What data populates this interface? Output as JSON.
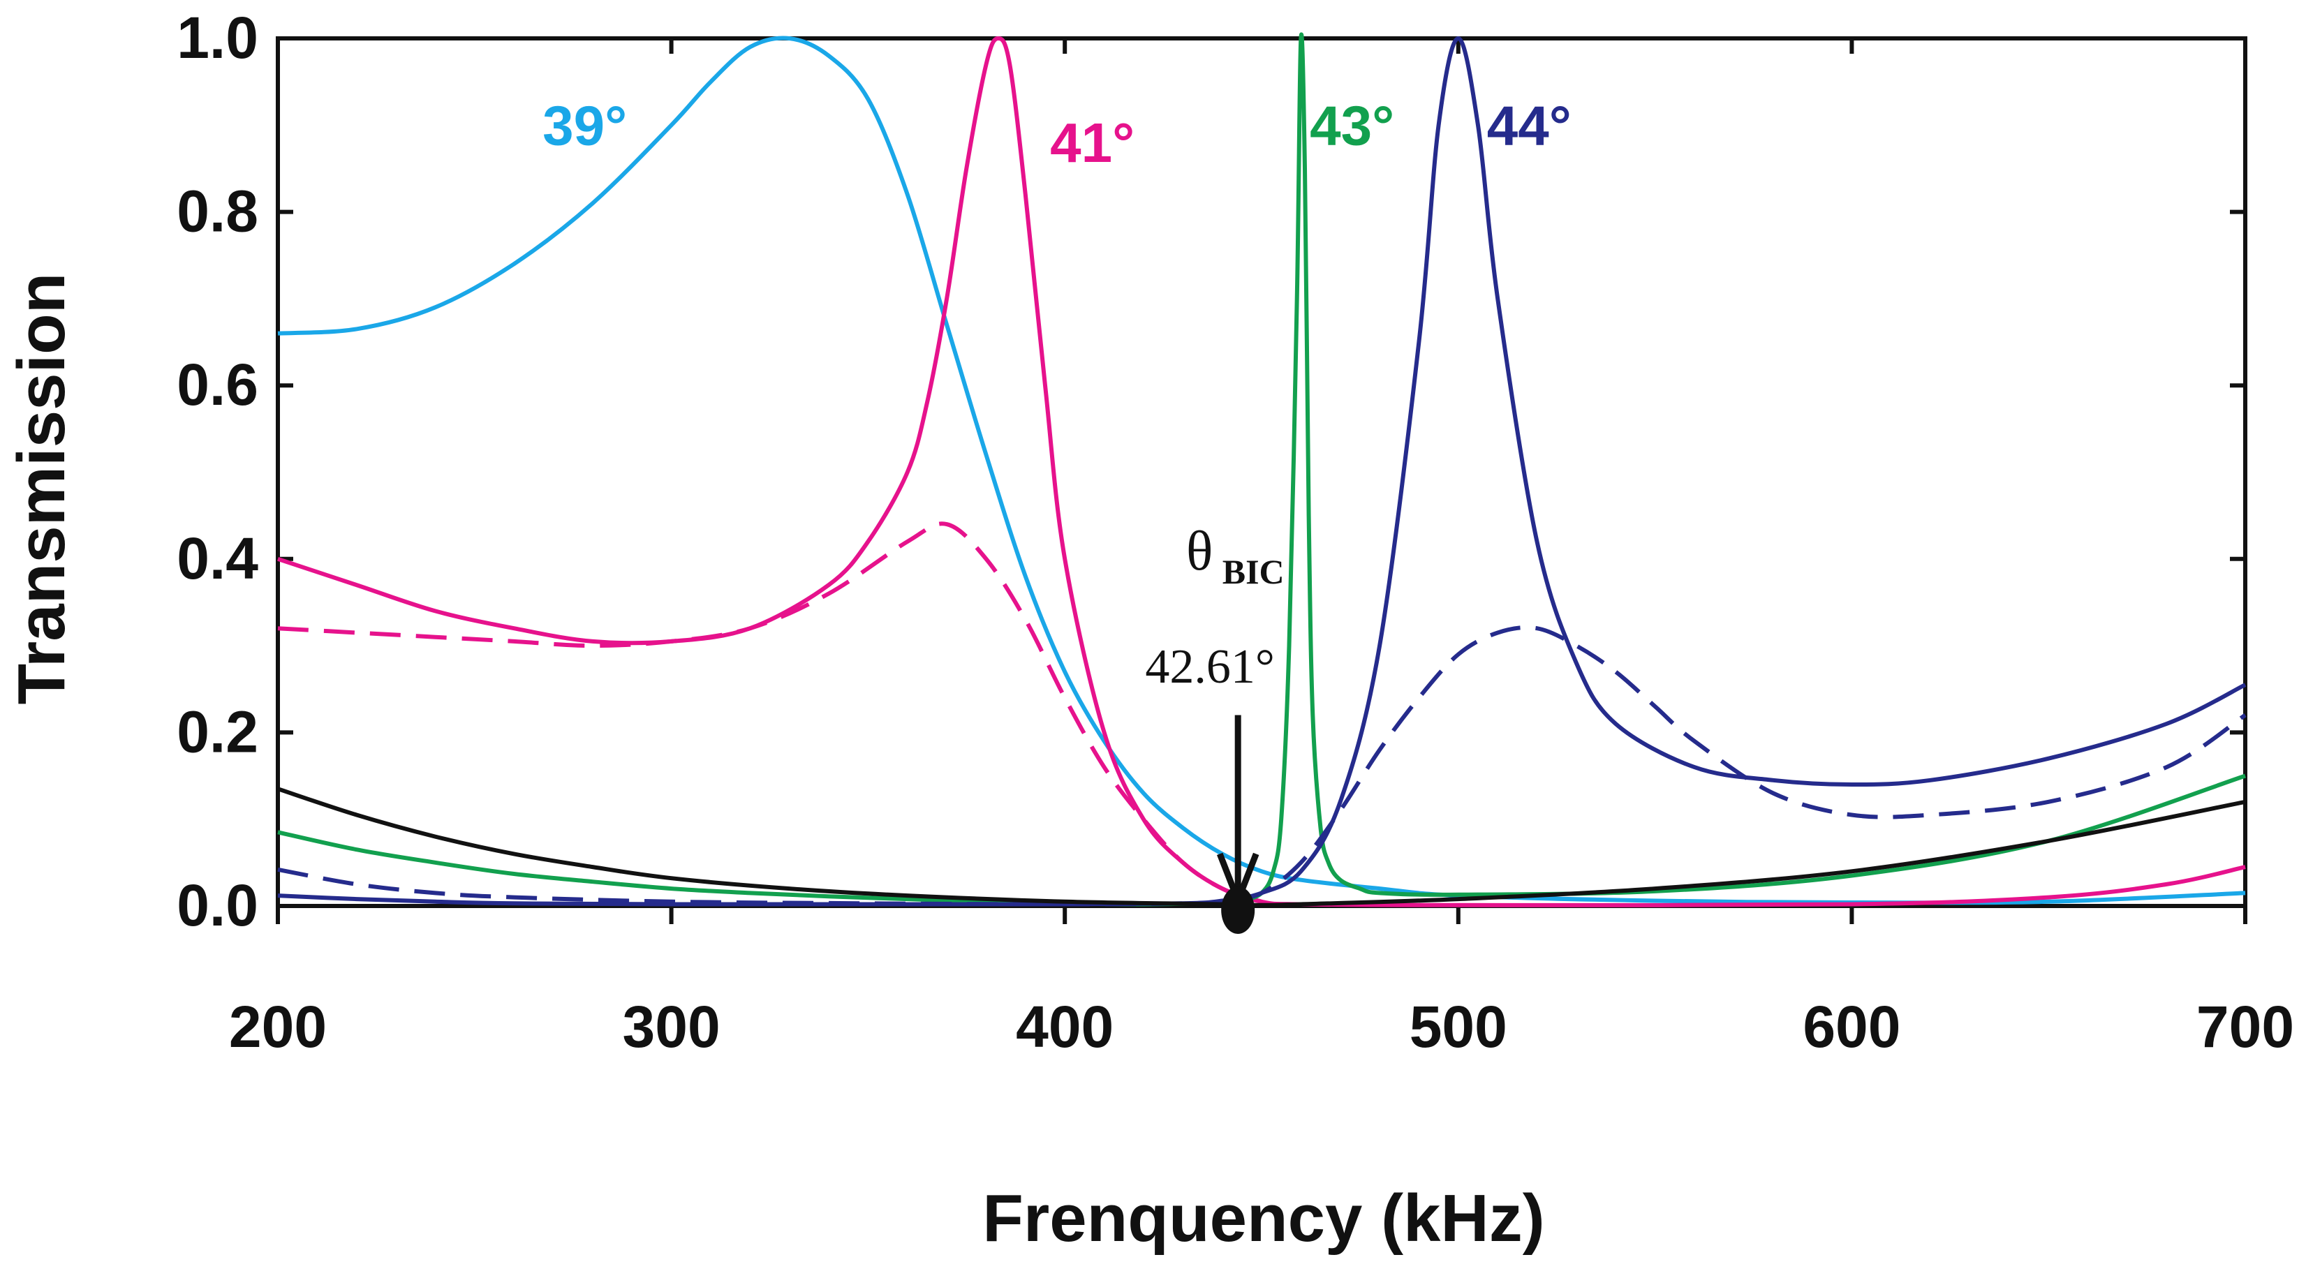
{
  "chart_data": {
    "type": "line",
    "title": "",
    "xlabel": "Frenquency (kHz)",
    "ylabel": "Transmission",
    "xlim": [
      200,
      700
    ],
    "ylim": [
      0.0,
      1.0
    ],
    "x_ticks": [
      "200",
      "300",
      "400",
      "500",
      "600",
      "700"
    ],
    "y_ticks": [
      "0.0",
      "0.2",
      "0.4",
      "0.6",
      "0.8",
      "1.0"
    ],
    "grid": false,
    "colors": {
      "39": "#1aa7e8",
      "41": "#e6128c",
      "43": "#12a04e",
      "44": "#252b8c",
      "black": "#111111"
    },
    "series": [
      {
        "name": "39°",
        "color": "#1aa7e8",
        "style": "solid",
        "x": [
          200,
          220,
          240,
          260,
          280,
          300,
          310,
          320,
          330,
          340,
          350,
          360,
          370,
          380,
          390,
          400,
          410,
          420,
          430,
          440,
          450,
          460,
          480,
          500,
          550,
          600,
          650,
          700
        ],
        "y": [
          0.66,
          0.665,
          0.69,
          0.74,
          0.81,
          0.9,
          0.95,
          0.99,
          1.0,
          0.98,
          0.93,
          0.82,
          0.67,
          0.52,
          0.38,
          0.27,
          0.19,
          0.13,
          0.09,
          0.06,
          0.04,
          0.03,
          0.02,
          0.012,
          0.006,
          0.004,
          0.005,
          0.015
        ]
      },
      {
        "name": "41°",
        "color": "#e6128c",
        "style": "solid",
        "x": [
          200,
          220,
          240,
          260,
          280,
          300,
          320,
          340,
          350,
          360,
          365,
          370,
          375,
          380,
          383,
          386,
          390,
          395,
          400,
          410,
          420,
          430,
          440,
          450,
          460,
          500,
          600,
          650,
          680,
          700
        ],
        "y": [
          0.4,
          0.37,
          0.34,
          0.32,
          0.305,
          0.305,
          0.32,
          0.37,
          0.42,
          0.5,
          0.58,
          0.7,
          0.85,
          0.97,
          1.0,
          0.97,
          0.82,
          0.6,
          0.4,
          0.2,
          0.1,
          0.05,
          0.02,
          0.005,
          0.002,
          0.001,
          0.002,
          0.01,
          0.025,
          0.045
        ]
      },
      {
        "name": "41° dashed",
        "color": "#e6128c",
        "style": "dashed",
        "x": [
          200,
          220,
          240,
          260,
          280,
          300,
          320,
          340,
          360,
          370,
          380,
          390,
          400,
          410,
          420,
          430,
          440,
          450
        ],
        "y": [
          0.32,
          0.315,
          0.31,
          0.305,
          0.3,
          0.305,
          0.32,
          0.36,
          0.42,
          0.44,
          0.4,
          0.33,
          0.24,
          0.16,
          0.1,
          0.05,
          0.02,
          0.005
        ]
      },
      {
        "name": "43°",
        "color": "#12a04e",
        "style": "solid",
        "x": [
          200,
          220,
          240,
          260,
          280,
          300,
          320,
          340,
          360,
          380,
          400,
          420,
          440,
          445,
          450,
          453,
          455,
          457,
          459,
          460,
          461,
          462,
          463,
          465,
          467,
          470,
          475,
          480,
          500,
          550,
          600,
          650,
          700
        ],
        "y": [
          0.085,
          0.065,
          0.05,
          0.037,
          0.028,
          0.02,
          0.015,
          0.011,
          0.008,
          0.005,
          0.003,
          0.002,
          0.004,
          0.006,
          0.015,
          0.04,
          0.1,
          0.3,
          0.7,
          1.0,
          0.85,
          0.45,
          0.22,
          0.09,
          0.05,
          0.03,
          0.02,
          0.015,
          0.013,
          0.017,
          0.035,
          0.075,
          0.15
        ]
      },
      {
        "name": "44°",
        "color": "#252b8c",
        "style": "solid",
        "x": [
          200,
          220,
          240,
          260,
          300,
          350,
          400,
          430,
          440,
          450,
          460,
          470,
          480,
          490,
          495,
          500,
          505,
          510,
          520,
          530,
          540,
          560,
          580,
          600,
          620,
          650,
          680,
          700
        ],
        "y": [
          0.012,
          0.008,
          0.005,
          0.003,
          0.002,
          0.002,
          0.002,
          0.003,
          0.006,
          0.015,
          0.04,
          0.12,
          0.3,
          0.65,
          0.9,
          1.0,
          0.9,
          0.7,
          0.42,
          0.28,
          0.21,
          0.16,
          0.145,
          0.14,
          0.145,
          0.17,
          0.21,
          0.255
        ]
      },
      {
        "name": "44° dashed",
        "color": "#252b8c",
        "style": "dashed",
        "x": [
          200,
          220,
          240,
          260,
          300,
          350,
          400,
          430,
          440,
          450,
          460,
          470,
          480,
          490,
          500,
          510,
          520,
          530,
          540,
          550,
          560,
          580,
          600,
          620,
          650,
          680,
          700
        ],
        "y": [
          0.042,
          0.025,
          0.015,
          0.01,
          0.005,
          0.003,
          0.002,
          0.003,
          0.005,
          0.015,
          0.05,
          0.11,
          0.18,
          0.24,
          0.29,
          0.315,
          0.32,
          0.3,
          0.27,
          0.23,
          0.19,
          0.13,
          0.105,
          0.105,
          0.12,
          0.16,
          0.22
        ]
      },
      {
        "name": "black",
        "color": "#111111",
        "style": "solid",
        "x": [
          200,
          220,
          240,
          260,
          280,
          300,
          330,
          360,
          400,
          440,
          450,
          460,
          500,
          550,
          600,
          650,
          700
        ],
        "y": [
          0.135,
          0.105,
          0.08,
          0.06,
          0.045,
          0.032,
          0.02,
          0.012,
          0.005,
          0.002,
          0.001,
          0.002,
          0.008,
          0.02,
          0.04,
          0.075,
          0.12
        ]
      }
    ],
    "curve_labels": [
      {
        "text": "39°",
        "series": "39°",
        "x": 278,
        "y": 0.9
      },
      {
        "text": "41°",
        "series": "41°",
        "x": 407,
        "y": 0.88
      },
      {
        "text": "43°",
        "series": "43°",
        "x": 473,
        "y": 0.9
      },
      {
        "text": "44°",
        "series": "44°",
        "x": 518,
        "y": 0.9
      }
    ],
    "annotation": {
      "symbol": "θ",
      "subscript": "BIC",
      "value": "42.61°",
      "x": 444
    }
  }
}
